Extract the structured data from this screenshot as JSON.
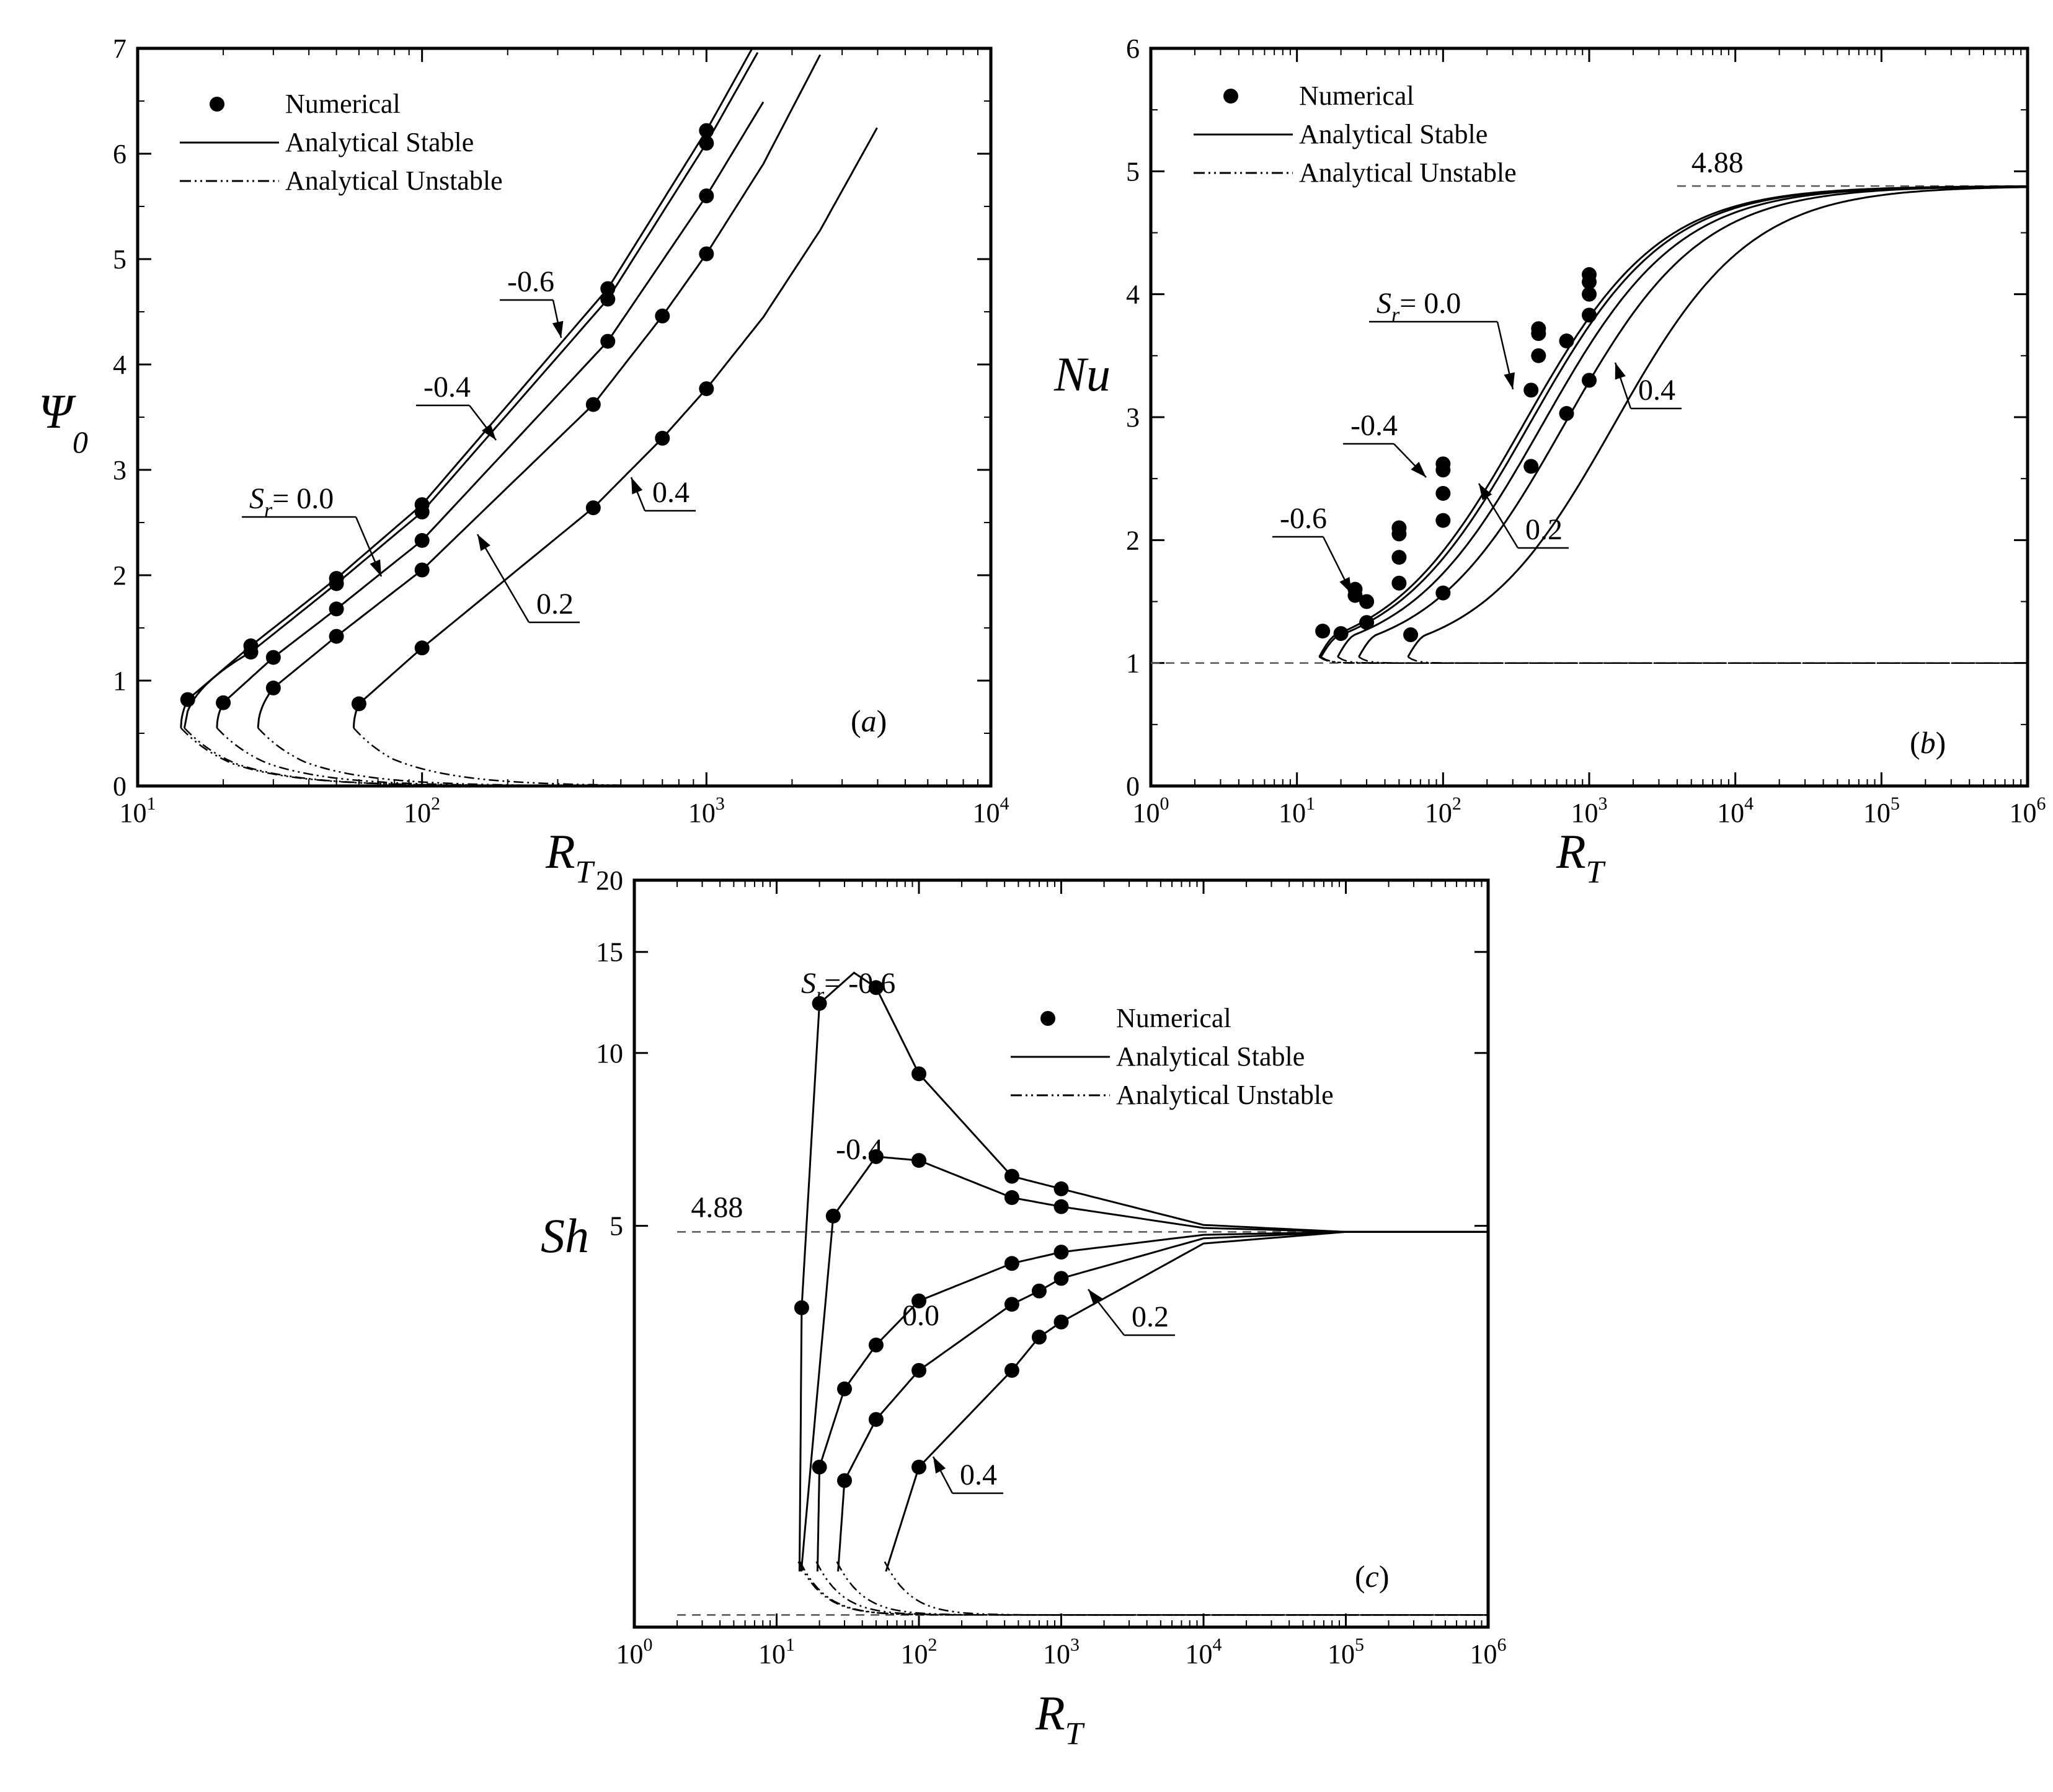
{
  "colors": {
    "ink": "#000000",
    "background": "#ffffff",
    "reference": "#555555"
  },
  "legend": {
    "numerical": "Numerical",
    "stable": "Analytical Stable",
    "unstable": "Analytical Unstable"
  },
  "chart_data": [
    {
      "id": "a",
      "type": "line",
      "panel_label": "(a)",
      "xscale": "log",
      "xlim": [
        10,
        10000
      ],
      "ylim": [
        0,
        7
      ],
      "xlabel": "R",
      "xlabel_sub": "T",
      "ylabel": "Ψ",
      "ylabel_sub": "0",
      "x_ticks": [
        {
          "base": "10",
          "exp": "1"
        },
        {
          "base": "10",
          "exp": "2"
        },
        {
          "base": "10",
          "exp": "3"
        },
        {
          "base": "10",
          "exp": "4"
        }
      ],
      "y_ticks": [
        "0",
        "1",
        "2",
        "3",
        "4",
        "5",
        "6",
        "7"
      ],
      "legend_position": "top-left",
      "series": [
        {
          "name": "-0.6",
          "Rmin": 14.2,
          "ymin": 0.55,
          "A": 1.45,
          "p": 0.5,
          "points": [
            [
              15,
              0.82
            ],
            [
              25,
              1.33
            ],
            [
              50,
              1.97
            ],
            [
              100,
              2.67
            ],
            [
              450,
              4.72
            ],
            [
              1000,
              6.22
            ]
          ]
        },
        {
          "name": "-0.4",
          "Rmin": 14.6,
          "ymin": 0.55,
          "A": 1.42,
          "p": 0.5,
          "points": [
            [
              25,
              1.27
            ],
            [
              50,
              1.92
            ],
            [
              100,
              2.6
            ],
            [
              450,
              4.62
            ],
            [
              1000,
              6.1
            ]
          ]
        },
        {
          "name": "0.0",
          "Rmin": 19.0,
          "ymin": 0.55,
          "A": 1.4,
          "p": 0.5,
          "points": [
            [
              20,
              0.79
            ],
            [
              30,
              1.22
            ],
            [
              50,
              1.68
            ],
            [
              100,
              2.33
            ],
            [
              450,
              4.22
            ],
            [
              1000,
              5.6
            ]
          ]
        },
        {
          "name": "0.2",
          "Rmin": 26.5,
          "ymin": 0.55,
          "A": 1.43,
          "p": 0.5,
          "points": [
            [
              30,
              0.93
            ],
            [
              50,
              1.42
            ],
            [
              100,
              2.05
            ],
            [
              400,
              3.62
            ],
            [
              700,
              4.46
            ],
            [
              1000,
              5.05
            ]
          ]
        },
        {
          "name": "0.4",
          "Rmin": 57.5,
          "ymin": 0.55,
          "A": 1.47,
          "p": 0.5,
          "points": [
            [
              60,
              0.78
            ],
            [
              100,
              1.31
            ],
            [
              400,
              2.64
            ],
            [
              700,
              3.3
            ],
            [
              1000,
              3.77
            ]
          ]
        }
      ],
      "annotations": [
        {
          "text": "-0.6"
        },
        {
          "text": "-0.4"
        },
        {
          "text": "S",
          "sub": "r",
          "rest": "= 0.0"
        },
        {
          "text": "0.2"
        },
        {
          "text": "0.4"
        }
      ]
    },
    {
      "id": "b",
      "type": "line",
      "panel_label": "(b)",
      "xscale": "log",
      "xlim": [
        1,
        1000000
      ],
      "ylim": [
        0,
        6
      ],
      "xlabel": "R",
      "xlabel_sub": "T",
      "ylabel": "Nu",
      "x_ticks": [
        {
          "base": "10",
          "exp": "0"
        },
        {
          "base": "10",
          "exp": "1"
        },
        {
          "base": "10",
          "exp": "2"
        },
        {
          "base": "10",
          "exp": "3"
        },
        {
          "base": "10",
          "exp": "4"
        },
        {
          "base": "10",
          "exp": "5"
        },
        {
          "base": "10",
          "exp": "6"
        }
      ],
      "y_ticks": [
        "0",
        "1",
        "2",
        "3",
        "4",
        "5",
        "6"
      ],
      "asymptote": 4.88,
      "asymptote_label": "4.88",
      "baseline": 1,
      "legend_position": "top-left",
      "series": [
        {
          "name": "-0.6",
          "Rmin": 14.2,
          "ymin": 1.05,
          "shift": 0.0,
          "points": [
            [
              15,
              1.26
            ],
            [
              25,
              1.6
            ],
            [
              50,
              2.1
            ],
            [
              100,
              2.62
            ],
            [
              450,
              3.72
            ],
            [
              1000,
              4.16
            ]
          ]
        },
        {
          "name": "-0.4",
          "Rmin": 14.6,
          "ymin": 1.05,
          "shift": 0.04,
          "points": [
            [
              25,
              1.55
            ],
            [
              50,
              2.05
            ],
            [
              100,
              2.57
            ],
            [
              450,
              3.68
            ],
            [
              1000,
              4.1
            ]
          ]
        },
        {
          "name": "0.0",
          "Rmin": 19.0,
          "ymin": 1.05,
          "shift": 0.13,
          "points": [
            [
              20,
              1.24
            ],
            [
              30,
              1.5
            ],
            [
              50,
              1.86
            ],
            [
              100,
              2.38
            ],
            [
              450,
              3.5
            ],
            [
              1000,
              4.0
            ]
          ]
        },
        {
          "name": "0.2",
          "Rmin": 26.5,
          "ymin": 1.05,
          "shift": 0.28,
          "points": [
            [
              30,
              1.33
            ],
            [
              50,
              1.65
            ],
            [
              100,
              2.16
            ],
            [
              400,
              3.22
            ],
            [
              700,
              3.62
            ],
            [
              1000,
              3.83
            ]
          ]
        },
        {
          "name": "0.4",
          "Rmin": 57.5,
          "ymin": 1.05,
          "shift": 0.62,
          "points": [
            [
              60,
              1.23
            ],
            [
              100,
              1.57
            ],
            [
              400,
              2.6
            ],
            [
              700,
              3.03
            ],
            [
              1000,
              3.3
            ]
          ]
        }
      ],
      "annotations": [
        {
          "text": "S",
          "sub": "r",
          "rest": "= 0.0"
        },
        {
          "text": "-0.4"
        },
        {
          "text": "-0.6"
        },
        {
          "text": "0.2"
        },
        {
          "text": "0.4"
        }
      ]
    },
    {
      "id": "c",
      "type": "line",
      "panel_label": "(c)",
      "xscale": "log",
      "yscale": "log",
      "xlim": [
        1,
        1000000
      ],
      "ylim": [
        1,
        20
      ],
      "xlabel": "R",
      "xlabel_sub": "T",
      "ylabel": "Sh",
      "x_ticks": [
        {
          "base": "10",
          "exp": "0"
        },
        {
          "base": "10",
          "exp": "1"
        },
        {
          "base": "10",
          "exp": "2"
        },
        {
          "base": "10",
          "exp": "3"
        },
        {
          "base": "10",
          "exp": "4"
        },
        {
          "base": "10",
          "exp": "5"
        },
        {
          "base": "10",
          "exp": "6"
        }
      ],
      "y_ticks": [
        {
          "v": 5,
          "label": "5"
        },
        {
          "v": 10,
          "label": "10"
        },
        {
          "v": 15,
          "label": "15"
        },
        {
          "v": 20,
          "label": "20"
        }
      ],
      "asymptote": 4.88,
      "asymptote_label": "4.88",
      "baseline": 1.05,
      "legend_position": "top-right",
      "series": [
        {
          "name": "-0.6",
          "Rmin": 14.2,
          "peak": 13.8,
          "peakR": 35,
          "points": [
            [
              15,
              3.6
            ],
            [
              20,
              12.2
            ],
            [
              50,
              13.0
            ],
            [
              100,
              9.2
            ],
            [
              450,
              6.1
            ],
            [
              1000,
              5.8
            ]
          ]
        },
        {
          "name": "-0.4",
          "Rmin": 14.6,
          "peak": 6.6,
          "peakR": 50,
          "points": [
            [
              25,
              5.2
            ],
            [
              50,
              6.6
            ],
            [
              100,
              6.5
            ],
            [
              450,
              5.6
            ],
            [
              1000,
              5.4
            ]
          ]
        },
        {
          "name": "0.0",
          "Rmin": 19.0,
          "points": [
            [
              20,
              1.9
            ],
            [
              30,
              2.6
            ],
            [
              50,
              3.1
            ],
            [
              100,
              3.7
            ],
            [
              450,
              4.3
            ],
            [
              1000,
              4.5
            ]
          ]
        },
        {
          "name": "0.2",
          "Rmin": 26.5,
          "points": [
            [
              30,
              1.8
            ],
            [
              50,
              2.3
            ],
            [
              100,
              2.8
            ],
            [
              450,
              3.65
            ],
            [
              700,
              3.85
            ],
            [
              1000,
              4.05
            ]
          ]
        },
        {
          "name": "0.4",
          "Rmin": 57.5,
          "points": [
            [
              100,
              1.9
            ],
            [
              450,
              2.8
            ],
            [
              700,
              3.2
            ],
            [
              1000,
              3.4
            ]
          ]
        }
      ],
      "annotations": [
        {
          "text": "S",
          "sub": "r",
          "rest": "= -0.6"
        },
        {
          "text": "-0.4"
        },
        {
          "text": "0.0"
        },
        {
          "text": "0.2"
        },
        {
          "text": "0.4"
        }
      ]
    }
  ]
}
